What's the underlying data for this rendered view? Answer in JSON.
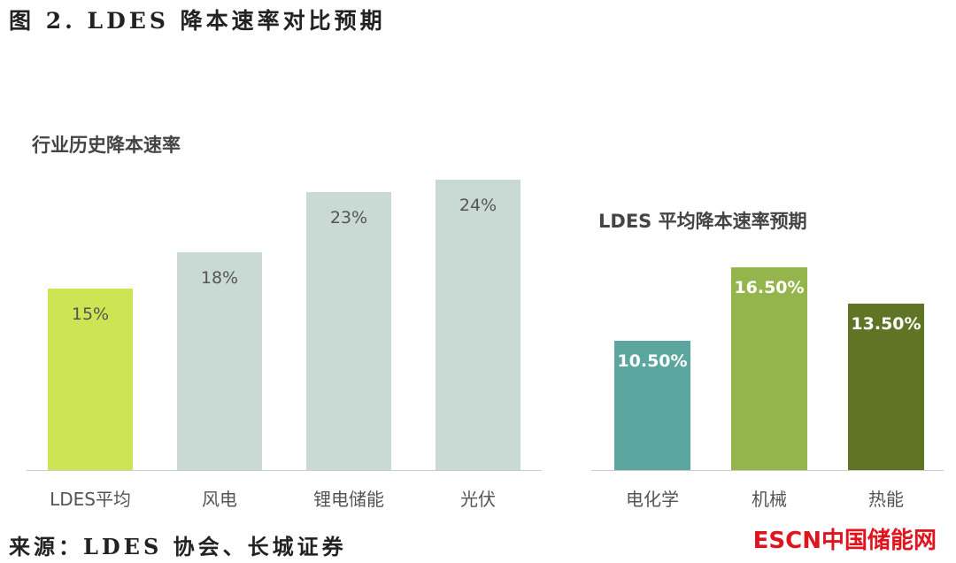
{
  "title": "图 2. LDES 降本速率对比预期",
  "source": "来源：LDES 协会、长城证券",
  "logo_text": "ESCN中国储能网",
  "chart_data": [
    {
      "type": "bar",
      "title": "行业历史降本速率",
      "categories": [
        "LDES平均",
        "风电",
        "锂电储能",
        "光伏"
      ],
      "values": [
        15,
        18,
        23,
        24
      ],
      "labels": [
        "15%",
        "18%",
        "23%",
        "24%"
      ],
      "colors": [
        "#cde552",
        "#c8dad3",
        "#c8dad3",
        "#c8dad3"
      ],
      "label_color": "#555555",
      "ylim": [
        0,
        24
      ],
      "grid": false
    },
    {
      "type": "bar",
      "title": "LDES 平均降本速率预期",
      "categories": [
        "电化学",
        "机械",
        "热能"
      ],
      "values": [
        10.5,
        16.5,
        13.5
      ],
      "labels": [
        "10.50%",
        "16.50%",
        "13.50%"
      ],
      "colors": [
        "#5ba7a0",
        "#94b54b",
        "#5f7424"
      ],
      "label_color": "#ffffff",
      "ylim": [
        0,
        16.5
      ],
      "grid": false
    }
  ]
}
